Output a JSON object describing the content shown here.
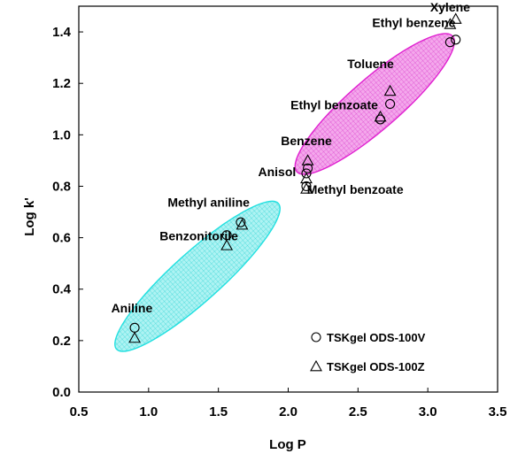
{
  "chart_data": {
    "type": "scatter",
    "xlabel": "Log P",
    "ylabel": "Log k'",
    "xlim": [
      0.5,
      3.5
    ],
    "ylim": [
      0.0,
      1.5
    ],
    "x_ticks": [
      0.5,
      1.0,
      1.5,
      2.0,
      2.5,
      3.0,
      3.5
    ],
    "x_tick_labels": [
      "0.5",
      "1.0",
      "1.5",
      "2.0",
      "2.5",
      "3.0",
      "3.5"
    ],
    "y_ticks": [
      0.0,
      0.2,
      0.4,
      0.6,
      0.8,
      1.0,
      1.2,
      1.4
    ],
    "y_tick_labels": [
      "0.0",
      "0.2",
      "0.4",
      "0.6",
      "0.8",
      "1.0",
      "1.2",
      "1.4"
    ],
    "grid": false,
    "legend_position": "bottom-right",
    "series": [
      {
        "name": "TSKgel ODS-100V",
        "marker": "circle",
        "points": [
          {
            "x": 0.9,
            "y": 0.25
          },
          {
            "x": 1.56,
            "y": 0.61
          },
          {
            "x": 1.66,
            "y": 0.66
          },
          {
            "x": 2.13,
            "y": 0.8
          },
          {
            "x": 2.13,
            "y": 0.85
          },
          {
            "x": 2.14,
            "y": 0.87
          },
          {
            "x": 2.66,
            "y": 1.06
          },
          {
            "x": 2.73,
            "y": 1.12
          },
          {
            "x": 3.16,
            "y": 1.36
          },
          {
            "x": 3.2,
            "y": 1.37
          }
        ]
      },
      {
        "name": "TSKgel ODS-100Z",
        "marker": "triangle",
        "points": [
          {
            "x": 0.9,
            "y": 0.21
          },
          {
            "x": 1.56,
            "y": 0.57
          },
          {
            "x": 1.67,
            "y": 0.65
          },
          {
            "x": 2.13,
            "y": 0.79
          },
          {
            "x": 2.13,
            "y": 0.83
          },
          {
            "x": 2.14,
            "y": 0.9
          },
          {
            "x": 2.66,
            "y": 1.07
          },
          {
            "x": 2.73,
            "y": 1.17
          },
          {
            "x": 3.16,
            "y": 1.43
          },
          {
            "x": 3.2,
            "y": 1.45
          }
        ]
      }
    ],
    "annotations": [
      {
        "text": "Aniline",
        "x": 0.88,
        "y": 0.31
      },
      {
        "text": "Benzonitorile",
        "x": 1.36,
        "y": 0.59
      },
      {
        "text": "Methyl aniline",
        "x": 1.43,
        "y": 0.72
      },
      {
        "text": "Anisol",
        "x": 1.92,
        "y": 0.84
      },
      {
        "text": "Benzene",
        "x": 2.13,
        "y": 0.96
      },
      {
        "text": "Methyl benzoate",
        "x": 2.48,
        "y": 0.77
      },
      {
        "text": "Ethyl benzoate",
        "x": 2.33,
        "y": 1.1
      },
      {
        "text": "Toluene",
        "x": 2.59,
        "y": 1.26
      },
      {
        "text": "Ethyl benzene",
        "x": 2.9,
        "y": 1.42
      },
      {
        "text": "Xylene",
        "x": 3.16,
        "y": 1.48
      }
    ],
    "regions": [
      {
        "color": "#22e0e0",
        "cx": 1.35,
        "cy": 0.45,
        "rx": 0.78,
        "ry": 0.175,
        "angle_deg": -42
      },
      {
        "color": "#e020d0",
        "cx": 2.62,
        "cy": 1.12,
        "rx": 0.74,
        "ry": 0.18,
        "angle_deg": -41
      }
    ]
  }
}
